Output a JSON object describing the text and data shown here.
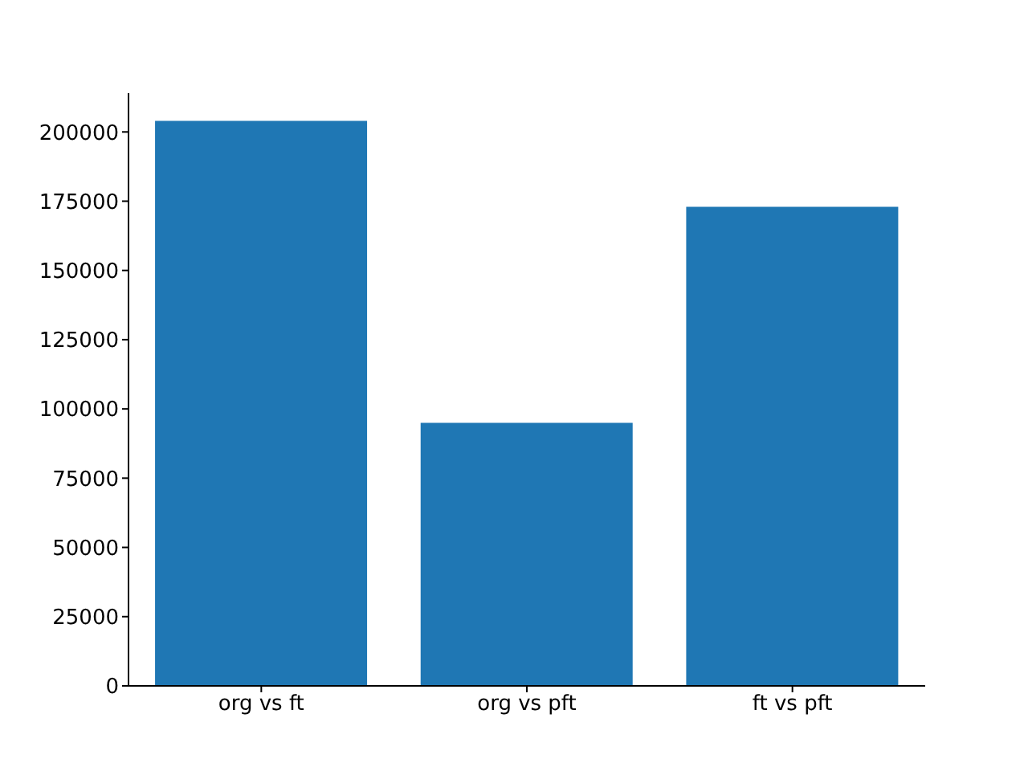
{
  "chart_data": {
    "type": "bar",
    "categories": [
      "org vs ft",
      "org vs pft",
      "ft vs pft"
    ],
    "values": [
      204000,
      95000,
      173000
    ],
    "color": "#1f77b4",
    "ylim": [
      0,
      214000
    ],
    "yticks": [
      0,
      25000,
      50000,
      75000,
      100000,
      125000,
      150000,
      175000,
      200000
    ],
    "grid": false
  }
}
